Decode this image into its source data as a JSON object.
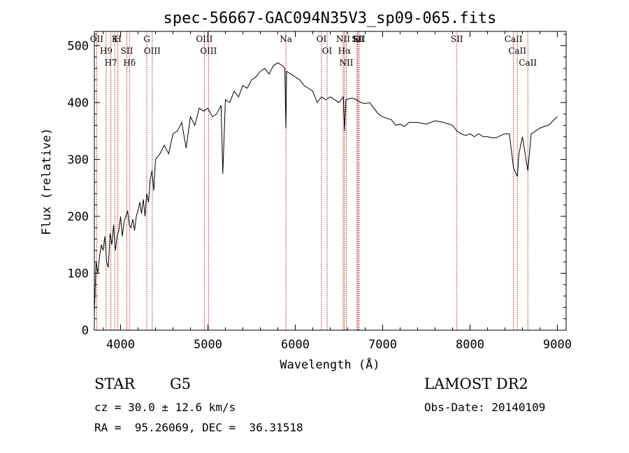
{
  "chart_data": {
    "type": "line",
    "title": "spec-56667-GAC094N35V3_sp09-065.fits",
    "xlabel": "Wavelength (Å)",
    "ylabel": "Flux (relative)",
    "xlim": [
      3700,
      9100
    ],
    "ylim": [
      0,
      525
    ],
    "xticks": [
      4000,
      5000,
      6000,
      7000,
      8000,
      9000
    ],
    "yticks": [
      0,
      100,
      200,
      300,
      400,
      500
    ],
    "grid": false,
    "line_color": "#000000",
    "marker_color": "#b22222",
    "series": [
      {
        "x": [
          3700,
          3720,
          3740,
          3760,
          3780,
          3800,
          3820,
          3840,
          3860,
          3880,
          3900,
          3920,
          3940,
          3960,
          3980,
          4000,
          4020,
          4040,
          4060,
          4080,
          4100,
          4120,
          4140,
          4160,
          4180,
          4200,
          4220,
          4240,
          4260,
          4280,
          4300,
          4320,
          4340,
          4360,
          4380,
          4400,
          4450,
          4500,
          4550,
          4600,
          4650,
          4700,
          4750,
          4800,
          4850,
          4900,
          4950,
          5000,
          5050,
          5100,
          5150,
          5170,
          5200,
          5250,
          5300,
          5350,
          5400,
          5450,
          5500,
          5550,
          5600,
          5650,
          5700,
          5750,
          5800,
          5850,
          5880,
          5893,
          5900,
          5950,
          6000,
          6050,
          6100,
          6150,
          6200,
          6250,
          6300,
          6350,
          6400,
          6450,
          6500,
          6550,
          6563,
          6580,
          6650,
          6700,
          6750,
          6800,
          6850,
          6900,
          6950,
          7000,
          7050,
          7100,
          7150,
          7200,
          7250,
          7300,
          7400,
          7500,
          7600,
          7700,
          7800,
          7850,
          7900,
          7950,
          8000,
          8050,
          8100,
          8150,
          8200,
          8250,
          8300,
          8350,
          8400,
          8450,
          8498,
          8542,
          8560,
          8600,
          8662,
          8700,
          8750,
          8800,
          8850,
          8900,
          8950,
          9000
        ],
        "y": [
          30,
          120,
          100,
          130,
          150,
          140,
          165,
          120,
          110,
          170,
          150,
          185,
          140,
          165,
          175,
          200,
          165,
          190,
          200,
          210,
          185,
          180,
          195,
          175,
          200,
          210,
          225,
          205,
          230,
          200,
          240,
          225,
          265,
          280,
          245,
          300,
          310,
          325,
          310,
          345,
          350,
          365,
          320,
          375,
          360,
          390,
          385,
          390,
          375,
          380,
          395,
          275,
          405,
          400,
          420,
          410,
          430,
          425,
          440,
          445,
          455,
          460,
          450,
          465,
          470,
          465,
          460,
          355,
          455,
          450,
          445,
          440,
          430,
          425,
          420,
          400,
          410,
          405,
          410,
          405,
          400,
          410,
          350,
          405,
          408,
          405,
          400,
          398,
          400,
          390,
          380,
          375,
          372,
          370,
          360,
          362,
          358,
          365,
          365,
          362,
          368,
          365,
          360,
          350,
          345,
          342,
          345,
          340,
          345,
          340,
          340,
          338,
          338,
          342,
          345,
          345,
          285,
          270,
          310,
          340,
          280,
          345,
          350,
          355,
          358,
          360,
          368,
          375
        ]
      }
    ],
    "line_markers": [
      {
        "x": 3727,
        "label": "OII"
      },
      {
        "x": 3835,
        "label": "H9"
      },
      {
        "x": 3889,
        "label": "H7"
      },
      {
        "x": 3934,
        "label": "K"
      },
      {
        "x": 3969,
        "label": "H"
      },
      {
        "x": 4072,
        "label": "SII"
      },
      {
        "x": 4102,
        "label": "Hδ"
      },
      {
        "x": 4300,
        "label": "G"
      },
      {
        "x": 4363,
        "label": "OIII"
      },
      {
        "x": 4959,
        "label": "OIII"
      },
      {
        "x": 5007,
        "label": "OIII"
      },
      {
        "x": 5893,
        "label": "Na"
      },
      {
        "x": 6300,
        "label": "OI"
      },
      {
        "x": 6364,
        "label": "OI"
      },
      {
        "x": 6548,
        "label": "NII"
      },
      {
        "x": 6563,
        "label": "Hα"
      },
      {
        "x": 6584,
        "label": "NII"
      },
      {
        "x": 6707,
        "label": "Li"
      },
      {
        "x": 6716,
        "label": "SII"
      },
      {
        "x": 6731,
        "label": "SII"
      },
      {
        "x": 7850,
        "label": "SII"
      },
      {
        "x": 8498,
        "label": "CaII"
      },
      {
        "x": 8542,
        "label": "CaII"
      },
      {
        "x": 8662,
        "label": "CaII"
      }
    ]
  },
  "info": {
    "class_label": "STAR",
    "subclass": "G5",
    "survey": "LAMOST DR2",
    "redshift": "cz = 30.0 ± 12.6 km/s",
    "obs_date": "Obs-Date: 20140109",
    "coords": "RA =  95.26069, DEC =  36.31518"
  }
}
